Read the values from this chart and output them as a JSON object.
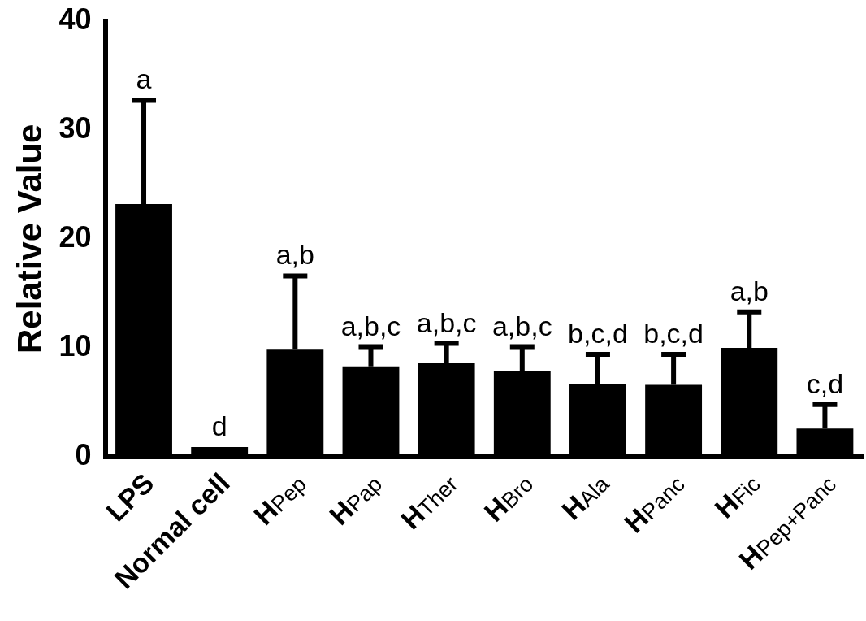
{
  "chart_data": {
    "type": "bar",
    "ylabel": "Relative Value",
    "categories": [
      "LPS",
      "Normal cell",
      "H$_{Pep}$",
      "H$_{Pap}$",
      "H$_{Ther}$",
      "H$_{Bro}$",
      "H$_{Ala}$",
      "H$_{Panc}$",
      "H$_{Fic}$",
      "H$_{Pep+Panc}$"
    ],
    "values": [
      23.2,
      0.9,
      9.9,
      8.3,
      8.6,
      7.9,
      6.7,
      6.6,
      10.0,
      2.6
    ],
    "errors": [
      [
        23.2,
        32.7
      ],
      null,
      [
        9.9,
        16.6
      ],
      [
        8.3,
        10.1
      ],
      [
        8.6,
        10.4
      ],
      [
        7.9,
        10.1
      ],
      [
        6.7,
        9.4
      ],
      [
        6.6,
        9.4
      ],
      [
        10.0,
        13.3
      ],
      [
        2.6,
        4.8
      ]
    ],
    "color": "#000000",
    "ylim": [
      0,
      40
    ],
    "yticks": [
      0,
      10,
      20,
      30,
      40
    ],
    "grid": false,
    "legend": false,
    "annotations": [
      "a",
      "d",
      "a,b",
      "a,b,c",
      "a,b,c",
      "a,b,c",
      "b,c,d",
      "b,c,d",
      "a,b",
      "c,d"
    ]
  }
}
